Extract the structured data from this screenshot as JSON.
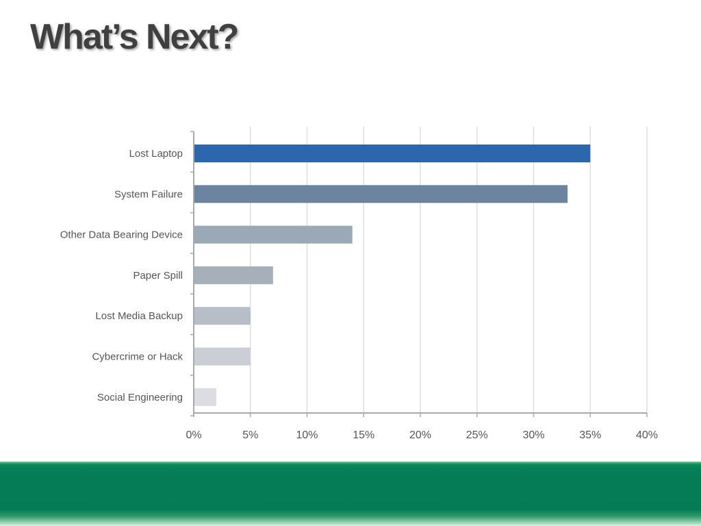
{
  "slide": {
    "title": "What’s Next?"
  },
  "chart_data": {
    "type": "bar",
    "orientation": "horizontal",
    "categories": [
      "Lost Laptop",
      "System Failure",
      "Other Data Bearing Device",
      "Paper Spill",
      "Lost Media Backup",
      "Cybercrime or Hack",
      "Social Engineering"
    ],
    "values": [
      35,
      33,
      14,
      7,
      5,
      5,
      2
    ],
    "value_unit": "%",
    "bar_colors": [
      "#2c67ad",
      "#6d84a1",
      "#9ba8b5",
      "#a7b0ba",
      "#b8bec8",
      "#cbced5",
      "#dcdde2"
    ],
    "xlim": [
      0,
      40
    ],
    "xticks": [
      "0%",
      "5%",
      "10%",
      "15%",
      "20%",
      "25%",
      "30%",
      "35%",
      "40%"
    ],
    "xtick_values": [
      0,
      5,
      10,
      15,
      20,
      25,
      30,
      35,
      40
    ],
    "title": "",
    "xlabel": "",
    "ylabel": "",
    "grid": "vertical"
  }
}
